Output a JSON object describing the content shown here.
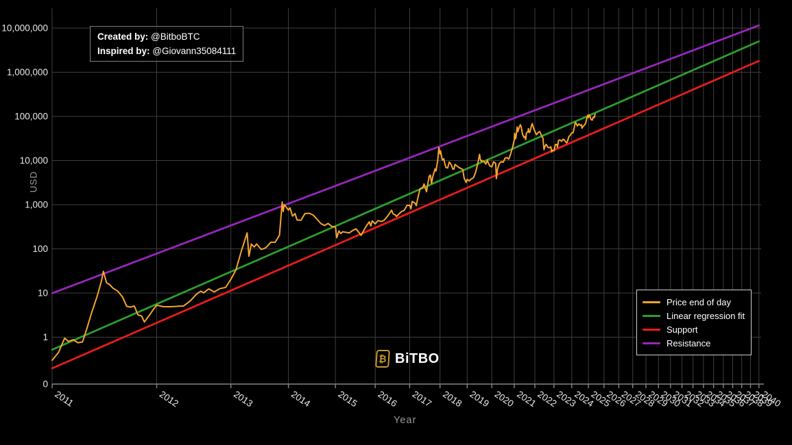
{
  "credit": {
    "line1_label": "Created by:",
    "line1_value": " @BitboBTC",
    "line2_label": "Inspired by:",
    "line2_value": " @Giovann35084111"
  },
  "watermark": {
    "symbol": "₿",
    "brand": "BiTBO"
  },
  "axes": {
    "y_title": "USD",
    "x_title": "Year",
    "y_ticks": [
      {
        "label": "10,000,000",
        "value": 10000000
      },
      {
        "label": "1,000,000",
        "value": 1000000
      },
      {
        "label": "100,000",
        "value": 100000
      },
      {
        "label": "10,000",
        "value": 10000
      },
      {
        "label": "1,000",
        "value": 1000
      },
      {
        "label": "100",
        "value": 100
      },
      {
        "label": "10",
        "value": 10
      },
      {
        "label": "1",
        "value": 1
      },
      {
        "label": "0",
        "value": 0.1
      }
    ],
    "x_tick_years": [
      2011,
      2012,
      2013,
      2014,
      2015,
      2016,
      2017,
      2018,
      2019,
      2020,
      2021,
      2022,
      2023,
      2024,
      2025,
      2026,
      2027,
      2028,
      2029,
      2030,
      2031,
      2032,
      2033,
      2034,
      2035,
      2036,
      2037,
      2038,
      2039,
      2040
    ]
  },
  "legend": {
    "items": [
      {
        "label": "Price end of day",
        "color": "#f6a52d"
      },
      {
        "label": "Linear regression fit",
        "color": "#2d9e2d"
      },
      {
        "label": "Support",
        "color": "#ea1c1c"
      },
      {
        "label": "Resistance",
        "color": "#9826bb"
      }
    ]
  },
  "theme": {
    "background": "#000000",
    "grid_color": "#3e3e3e",
    "axis_color": "#858585",
    "tick_label_color": "#e8e8e8",
    "axis_title_color": "#999999"
  },
  "chart_data": {
    "type": "line",
    "title": "",
    "xlabel": "Year",
    "ylabel": "USD",
    "x_scale": "log of years since 2009 (Bitcoin genesis), ticks 2011-2040",
    "y_scale": "log",
    "ylim": [
      0.1,
      10000000
    ],
    "grid": true,
    "legend_position": "bottom-right",
    "series": [
      {
        "name": "Price end of day",
        "color": "#f6a52d",
        "width": 2,
        "points": [
          [
            2011.0,
            0.3
          ],
          [
            2011.05,
            0.45
          ],
          [
            2011.1,
            0.95
          ],
          [
            2011.13,
            0.8
          ],
          [
            2011.17,
            0.88
          ],
          [
            2011.21,
            0.75
          ],
          [
            2011.25,
            0.78
          ],
          [
            2011.29,
            1.6
          ],
          [
            2011.33,
            3.5
          ],
          [
            2011.38,
            8.2
          ],
          [
            2011.42,
            18
          ],
          [
            2011.44,
            31
          ],
          [
            2011.47,
            17
          ],
          [
            2011.5,
            15.5
          ],
          [
            2011.53,
            13
          ],
          [
            2011.58,
            11
          ],
          [
            2011.63,
            8
          ],
          [
            2011.67,
            5
          ],
          [
            2011.71,
            4.8
          ],
          [
            2011.75,
            5.1
          ],
          [
            2011.79,
            3.2
          ],
          [
            2011.83,
            3.0
          ],
          [
            2011.86,
            2.2
          ],
          [
            2011.92,
            3.2
          ],
          [
            2011.96,
            4.2
          ],
          [
            2012.0,
            5.3
          ],
          [
            2012.08,
            4.9
          ],
          [
            2012.17,
            4.9
          ],
          [
            2012.25,
            5.0
          ],
          [
            2012.33,
            5.1
          ],
          [
            2012.42,
            6.7
          ],
          [
            2012.5,
            9.4
          ],
          [
            2012.56,
            11.0
          ],
          [
            2012.6,
            10.1
          ],
          [
            2012.67,
            12.4
          ],
          [
            2012.75,
            10.6
          ],
          [
            2012.83,
            12.5
          ],
          [
            2012.92,
            13.4
          ],
          [
            2013.0,
            20.4
          ],
          [
            2013.08,
            33.4
          ],
          [
            2013.17,
            93
          ],
          [
            2013.26,
            230
          ],
          [
            2013.29,
            68
          ],
          [
            2013.33,
            128
          ],
          [
            2013.38,
            110
          ],
          [
            2013.42,
            129
          ],
          [
            2013.5,
            97
          ],
          [
            2013.58,
            106
          ],
          [
            2013.67,
            141
          ],
          [
            2013.75,
            141
          ],
          [
            2013.83,
            204
          ],
          [
            2013.88,
            1150
          ],
          [
            2013.9,
            700
          ],
          [
            2013.92,
            1010
          ],
          [
            2014.0,
            757
          ],
          [
            2014.03,
            850
          ],
          [
            2014.08,
            550
          ],
          [
            2014.13,
            630
          ],
          [
            2014.17,
            450
          ],
          [
            2014.25,
            445
          ],
          [
            2014.33,
            628
          ],
          [
            2014.42,
            640
          ],
          [
            2014.5,
            585
          ],
          [
            2014.58,
            478
          ],
          [
            2014.67,
            375
          ],
          [
            2014.75,
            338
          ],
          [
            2014.83,
            378
          ],
          [
            2014.92,
            320
          ],
          [
            2015.0,
            315
          ],
          [
            2015.03,
            178
          ],
          [
            2015.08,
            254
          ],
          [
            2015.13,
            222
          ],
          [
            2015.17,
            244
          ],
          [
            2015.25,
            236
          ],
          [
            2015.33,
            230
          ],
          [
            2015.42,
            263
          ],
          [
            2015.5,
            284
          ],
          [
            2015.58,
            230
          ],
          [
            2015.63,
            202
          ],
          [
            2015.67,
            236
          ],
          [
            2015.75,
            314
          ],
          [
            2015.84,
            410
          ],
          [
            2015.88,
            330
          ],
          [
            2015.92,
            430
          ],
          [
            2016.0,
            368
          ],
          [
            2016.08,
            437
          ],
          [
            2016.17,
            416
          ],
          [
            2016.25,
            448
          ],
          [
            2016.33,
            531
          ],
          [
            2016.42,
            673
          ],
          [
            2016.46,
            750
          ],
          [
            2016.5,
            624
          ],
          [
            2016.58,
            575
          ],
          [
            2016.6,
            540
          ],
          [
            2016.67,
            610
          ],
          [
            2016.75,
            700
          ],
          [
            2016.83,
            742
          ],
          [
            2016.92,
            964
          ],
          [
            2017.0,
            970
          ],
          [
            2017.04,
            810
          ],
          [
            2017.08,
            1190
          ],
          [
            2017.17,
            1080
          ],
          [
            2017.21,
            950
          ],
          [
            2017.25,
            1350
          ],
          [
            2017.33,
            2300
          ],
          [
            2017.42,
            2480
          ],
          [
            2017.46,
            2950
          ],
          [
            2017.54,
            1960
          ],
          [
            2017.58,
            2875
          ],
          [
            2017.63,
            4400
          ],
          [
            2017.67,
            4700
          ],
          [
            2017.71,
            3000
          ],
          [
            2017.75,
            4340
          ],
          [
            2017.83,
            6470
          ],
          [
            2017.86,
            5800
          ],
          [
            2017.92,
            9900
          ],
          [
            2017.96,
            19500
          ],
          [
            2018.0,
            14100
          ],
          [
            2018.02,
            16500
          ],
          [
            2018.08,
            10200
          ],
          [
            2018.13,
            11000
          ],
          [
            2018.17,
            8500
          ],
          [
            2018.21,
            6930
          ],
          [
            2018.27,
            6800
          ],
          [
            2018.33,
            9240
          ],
          [
            2018.38,
            8400
          ],
          [
            2018.42,
            7500
          ],
          [
            2018.46,
            6400
          ],
          [
            2018.5,
            6400
          ],
          [
            2018.54,
            8200
          ],
          [
            2018.58,
            7780
          ],
          [
            2018.67,
            7040
          ],
          [
            2018.75,
            6630
          ],
          [
            2018.83,
            6300
          ],
          [
            2018.88,
            4040
          ],
          [
            2018.96,
            3200
          ],
          [
            2019.0,
            3740
          ],
          [
            2019.08,
            3460
          ],
          [
            2019.17,
            3850
          ],
          [
            2019.25,
            4100
          ],
          [
            2019.33,
            5350
          ],
          [
            2019.42,
            8560
          ],
          [
            2019.49,
            13800
          ],
          [
            2019.52,
            10800
          ],
          [
            2019.56,
            9500
          ],
          [
            2019.58,
            10000
          ],
          [
            2019.67,
            9600
          ],
          [
            2019.75,
            8300
          ],
          [
            2019.82,
            10300
          ],
          [
            2019.84,
            9150
          ],
          [
            2019.92,
            7550
          ],
          [
            2020.0,
            7200
          ],
          [
            2020.08,
            9350
          ],
          [
            2020.17,
            8550
          ],
          [
            2020.2,
            3900
          ],
          [
            2020.25,
            6440
          ],
          [
            2020.33,
            8650
          ],
          [
            2020.42,
            9450
          ],
          [
            2020.5,
            9140
          ],
          [
            2020.58,
            11350
          ],
          [
            2020.67,
            11650
          ],
          [
            2020.75,
            10780
          ],
          [
            2020.83,
            13800
          ],
          [
            2020.92,
            19700
          ],
          [
            2021.0,
            29000
          ],
          [
            2021.02,
            41500
          ],
          [
            2021.06,
            31000
          ],
          [
            2021.08,
            33100
          ],
          [
            2021.14,
            57500
          ],
          [
            2021.17,
            45200
          ],
          [
            2021.25,
            58800
          ],
          [
            2021.29,
            64800
          ],
          [
            2021.33,
            57750
          ],
          [
            2021.4,
            38000
          ],
          [
            2021.42,
            37300
          ],
          [
            2021.46,
            33500
          ],
          [
            2021.5,
            35000
          ],
          [
            2021.55,
            29800
          ],
          [
            2021.58,
            41500
          ],
          [
            2021.67,
            47100
          ],
          [
            2021.68,
            52700
          ],
          [
            2021.71,
            43000
          ],
          [
            2021.75,
            43800
          ],
          [
            2021.83,
            61300
          ],
          [
            2021.86,
            66900
          ],
          [
            2021.87,
            69000
          ],
          [
            2021.92,
            57000
          ],
          [
            2021.96,
            50500
          ],
          [
            2022.0,
            46200
          ],
          [
            2022.08,
            38500
          ],
          [
            2022.17,
            43200
          ],
          [
            2022.25,
            45500
          ],
          [
            2022.33,
            37650
          ],
          [
            2022.42,
            31800
          ],
          [
            2022.47,
            17700
          ],
          [
            2022.5,
            19900
          ],
          [
            2022.58,
            23300
          ],
          [
            2022.67,
            20050
          ],
          [
            2022.75,
            19400
          ],
          [
            2022.83,
            20500
          ],
          [
            2022.88,
            15600
          ],
          [
            2022.92,
            17150
          ],
          [
            2023.0,
            16550
          ],
          [
            2023.08,
            23100
          ],
          [
            2023.17,
            23150
          ],
          [
            2023.19,
            19900
          ],
          [
            2023.25,
            28500
          ],
          [
            2023.33,
            29250
          ],
          [
            2023.42,
            27200
          ],
          [
            2023.5,
            30480
          ],
          [
            2023.58,
            29230
          ],
          [
            2023.67,
            25930
          ],
          [
            2023.71,
            25100
          ],
          [
            2023.75,
            26970
          ],
          [
            2023.83,
            34650
          ],
          [
            2023.92,
            37700
          ],
          [
            2024.0,
            42270
          ],
          [
            2024.08,
            42580
          ],
          [
            2024.17,
            61200
          ],
          [
            2024.21,
            73700
          ],
          [
            2024.25,
            71300
          ],
          [
            2024.33,
            60640
          ],
          [
            2024.42,
            67500
          ],
          [
            2024.5,
            62680
          ],
          [
            2024.58,
            64600
          ],
          [
            2024.6,
            54000
          ],
          [
            2024.67,
            58970
          ],
          [
            2024.75,
            63330
          ],
          [
            2024.83,
            70200
          ],
          [
            2024.92,
            96450
          ],
          [
            2024.96,
            106100
          ],
          [
            2025.0,
            93430
          ],
          [
            2025.05,
            109100
          ],
          [
            2025.08,
            102400
          ],
          [
            2025.17,
            84350
          ],
          [
            2025.25,
            82550
          ],
          [
            2025.29,
            94200
          ],
          [
            2025.33,
            97000
          ],
          [
            2025.37,
            94000
          ],
          [
            2025.42,
            111700
          ]
        ]
      },
      {
        "name": "Linear regression fit",
        "color": "#2d9e2d",
        "width": 2.8,
        "points": [
          [
            2011.0,
            0.52
          ],
          [
            2040.0,
            5000000
          ]
        ]
      },
      {
        "name": "Support",
        "color": "#ea1c1c",
        "width": 2.8,
        "points": [
          [
            2011.0,
            0.197
          ],
          [
            2040.0,
            1800000
          ]
        ]
      },
      {
        "name": "Resistance",
        "color": "#9826bb",
        "width": 2.8,
        "points": [
          [
            2011.0,
            9.9
          ],
          [
            2040.0,
            11500000
          ]
        ]
      }
    ]
  }
}
